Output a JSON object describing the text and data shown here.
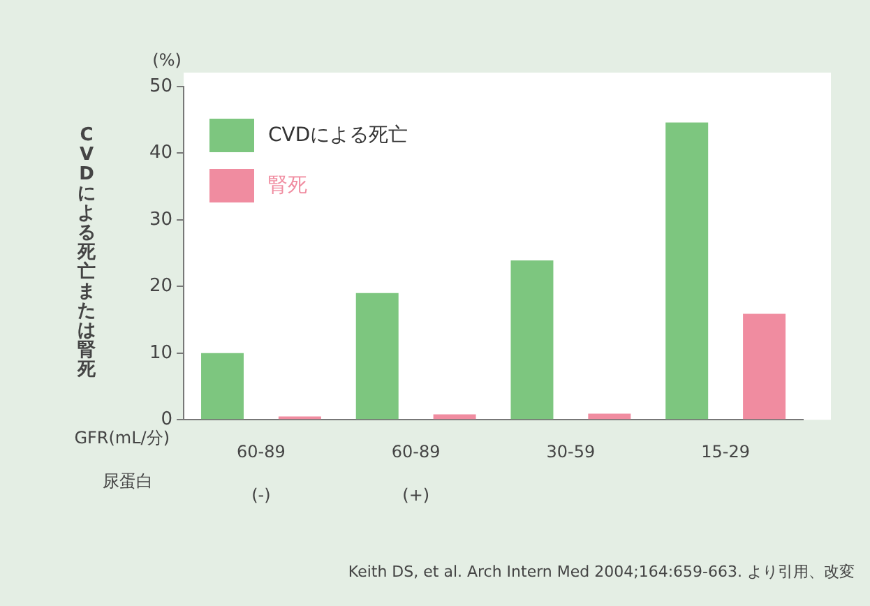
{
  "chart_data": {
    "type": "bar",
    "categories": [
      "60-89\n(-)",
      "60-89\n(+)",
      "30-59",
      "15-29"
    ],
    "series": [
      {
        "name": "CVDによる死亡",
        "color": "#7dc67f",
        "values": [
          10,
          19,
          23.9,
          44.6
        ]
      },
      {
        "name": "腎死",
        "color": "#f08ca0",
        "values": [
          0.5,
          0.8,
          0.9,
          15.9
        ]
      }
    ],
    "ylabel": "CVDによる死亡または腎死",
    "xlabel": "GFR(mL/分)",
    "ylim": [
      0,
      50
    ],
    "yticks": [
      0,
      10,
      20,
      30,
      40,
      50
    ],
    "grid": false,
    "legend": "top left",
    "annotations": [
      "(%)",
      "尿蛋白",
      "Keith DS, et al. Arch Intern Med 2004;164:659-663. より引用、改変"
    ]
  }
}
